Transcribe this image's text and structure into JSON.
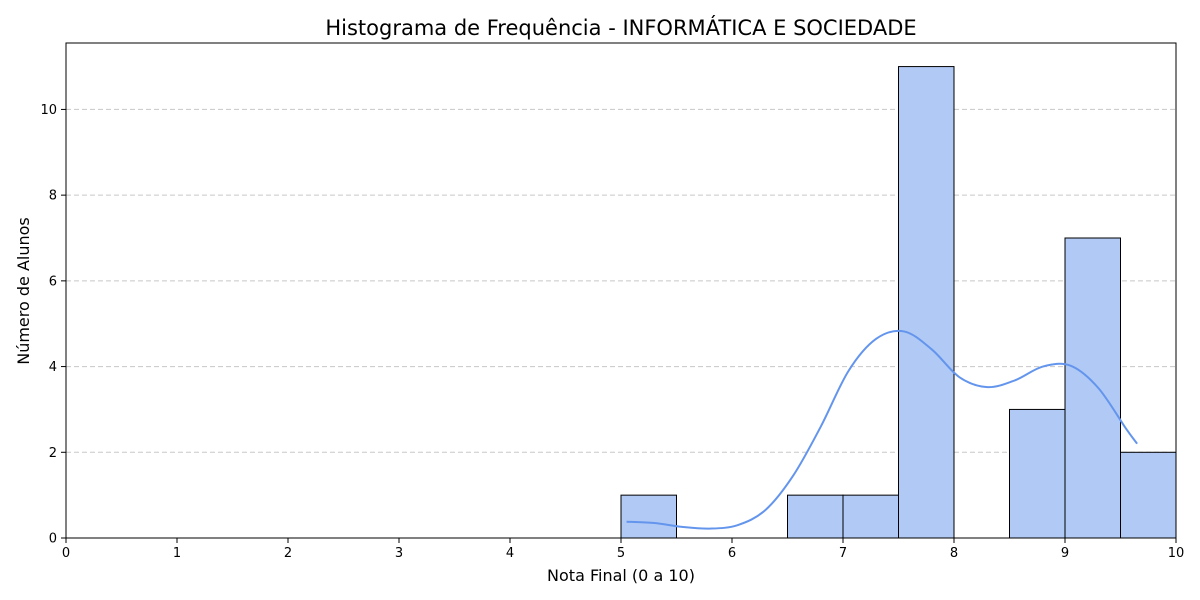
{
  "chart_data": {
    "type": "bar",
    "title": "Histograma de Frequência - INFORMÁTICA E SOCIEDADE",
    "xlabel": "Nota Final (0 a 10)",
    "ylabel": "Número de Alunos",
    "xlim": [
      0,
      10
    ],
    "ylim": [
      0,
      11.55
    ],
    "xticks": [
      "0",
      "1",
      "2",
      "3",
      "4",
      "5",
      "6",
      "7",
      "8",
      "9",
      "10"
    ],
    "yticks": [
      "0",
      "2",
      "4",
      "6",
      "8",
      "10"
    ],
    "grid": "y-dashed",
    "bins": [
      {
        "start": 5.0,
        "end": 5.5,
        "count": 1
      },
      {
        "start": 6.5,
        "end": 7.0,
        "count": 1
      },
      {
        "start": 7.0,
        "end": 7.5,
        "count": 1
      },
      {
        "start": 7.5,
        "end": 8.0,
        "count": 11
      },
      {
        "start": 8.5,
        "end": 9.0,
        "count": 3
      },
      {
        "start": 9.0,
        "end": 9.5,
        "count": 7
      },
      {
        "start": 9.5,
        "end": 10.0,
        "count": 2
      }
    ],
    "kde": {
      "x": [
        5.05,
        5.3,
        5.55,
        5.8,
        6.05,
        6.3,
        6.55,
        6.8,
        7.05,
        7.3,
        7.55,
        7.8,
        8.05,
        8.3,
        8.55,
        8.8,
        9.05,
        9.3,
        9.55,
        9.65
      ],
      "y": [
        0.38,
        0.35,
        0.26,
        0.22,
        0.3,
        0.65,
        1.45,
        2.6,
        3.9,
        4.65,
        4.82,
        4.4,
        3.75,
        3.52,
        3.68,
        4.0,
        4.02,
        3.5,
        2.55,
        2.2
      ]
    },
    "colors": {
      "bar_fill": "#b1c9f5",
      "bar_edge": "#000000",
      "kde_line": "#6495ed",
      "grid": "#c8c8c8"
    }
  }
}
